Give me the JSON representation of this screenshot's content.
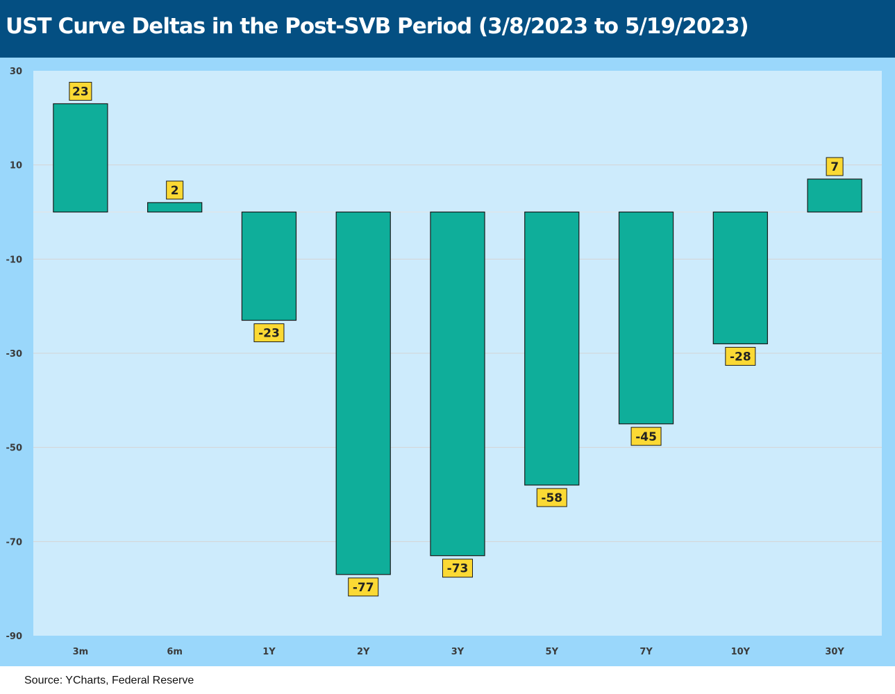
{
  "title": "UST Curve Deltas in the Post-SVB Period (3/8/2023 to 5/19/2023)",
  "source": "Source: YCharts, Federal Reserve",
  "colors": {
    "title_bg": "#044f82",
    "outer_bg": "#9ad7fb",
    "plot_bg": "#cdebfc",
    "bar": "#0fae9a",
    "label_bg": "#fbd934",
    "grid": "#d4d4d4"
  },
  "chart_data": {
    "type": "bar",
    "title": "UST Curve Deltas in the Post-SVB Period (3/8/2023 to 5/19/2023)",
    "xlabel": "",
    "ylabel": "",
    "categories": [
      "3m",
      "6m",
      "1Y",
      "2Y",
      "3Y",
      "5Y",
      "7Y",
      "10Y",
      "30Y"
    ],
    "values": [
      23,
      2,
      -23,
      -77,
      -73,
      -58,
      -45,
      -28,
      7
    ],
    "ylim": [
      -90,
      30
    ],
    "yticks": [
      30,
      10,
      -10,
      -30,
      -50,
      -70,
      -90
    ],
    "grid": true,
    "data_labels": true
  }
}
